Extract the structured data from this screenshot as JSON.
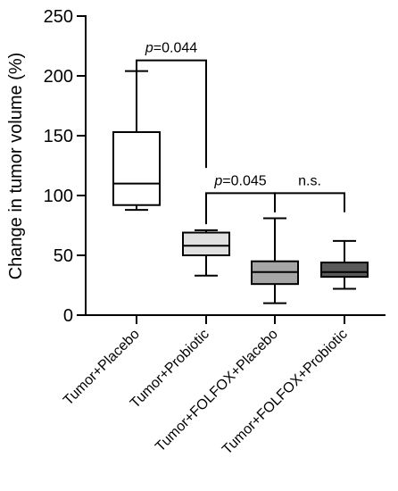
{
  "chart_data": {
    "type": "box",
    "ylabel": "Change in tumor volume (%)",
    "ylim": [
      0,
      250
    ],
    "yticks": [
      0,
      50,
      100,
      150,
      200,
      250
    ],
    "categories": [
      "Tumor+Placebo",
      "Tumor+Probiotic",
      "Tumor+FOLFOX+Placebo",
      "Tumor+FOLFOX+Probiotic"
    ],
    "boxes": [
      {
        "name": "Tumor+Placebo",
        "min": 88,
        "q1": 92,
        "median": 110,
        "q3": 153,
        "max": 204,
        "fill": "#ffffff"
      },
      {
        "name": "Tumor+Probiotic",
        "min": 33,
        "q1": 50,
        "median": 58,
        "q3": 69,
        "max": 71,
        "fill": "#e0e0e0"
      },
      {
        "name": "Tumor+FOLFOX+Placebo",
        "min": 10,
        "q1": 26,
        "median": 36,
        "q3": 45,
        "max": 81,
        "fill": "#a6a6a6"
      },
      {
        "name": "Tumor+FOLFOX+Probiotic",
        "min": 22,
        "q1": 32,
        "median": 36,
        "q3": 44,
        "max": 62,
        "fill": "#5a5a5a"
      }
    ],
    "comparisons": [
      {
        "from": 0,
        "to": 1,
        "label_italic": "p",
        "label_rest": "=0.044",
        "y": 213,
        "left_end": 204,
        "right_end": 123
      },
      {
        "from": 1,
        "to": 2,
        "label_italic": "p",
        "label_rest": "=0.045",
        "y": 102,
        "left_end": 76,
        "right_end": 86
      },
      {
        "from": 2,
        "to": 3,
        "label_italic": "",
        "label_rest": "n.s.",
        "y": 102,
        "left_end": 86,
        "right_end": 86
      }
    ]
  }
}
